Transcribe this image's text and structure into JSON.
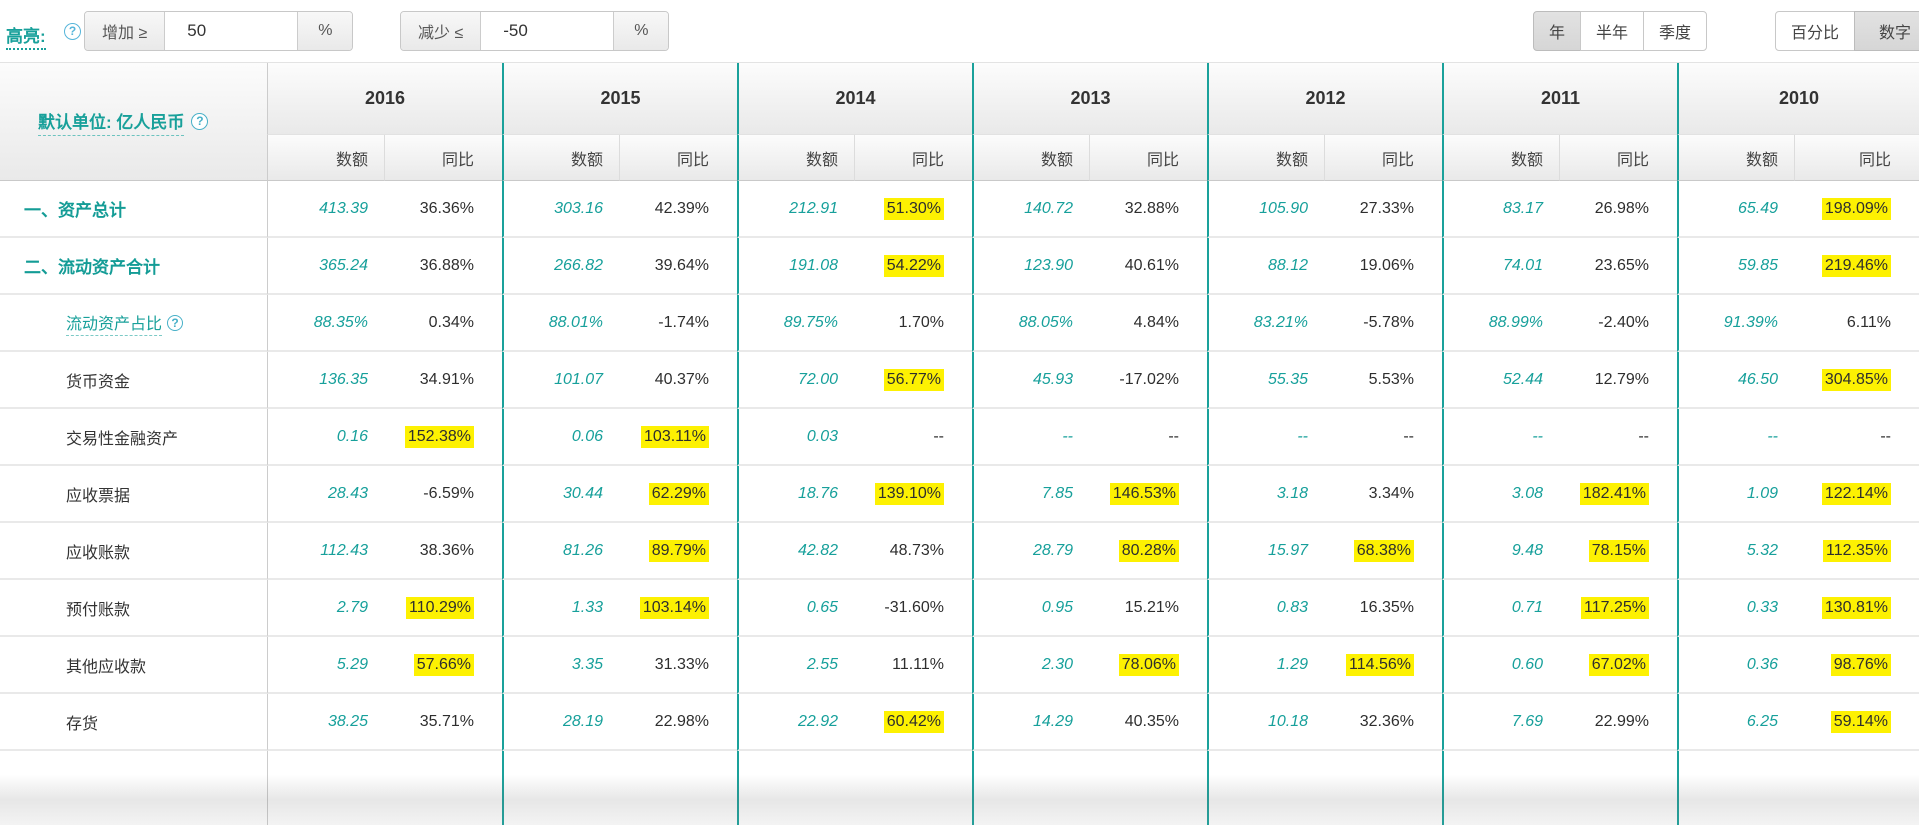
{
  "toolbar": {
    "highlight_label": "高亮:",
    "help_icon": "?",
    "increase_label": "增加 ≥",
    "increase_value": "50",
    "increase_unit": "%",
    "decrease_label": "减少 ≤",
    "decrease_value": "-50",
    "decrease_unit": "%",
    "period_buttons": [
      {
        "label": "年",
        "active": true
      },
      {
        "label": "半年",
        "active": false
      },
      {
        "label": "季度",
        "active": false
      }
    ],
    "format_buttons": [
      {
        "label": "百分比",
        "active": false
      },
      {
        "label": "数字",
        "active": true
      }
    ]
  },
  "table": {
    "unit_label": "默认单位: 亿人民币",
    "years": [
      "2016",
      "2015",
      "2014",
      "2013",
      "2012",
      "2011",
      "2010"
    ],
    "subheaders": [
      "数额",
      "同比"
    ],
    "rows": [
      {
        "label": "一、资产总计",
        "style": "section",
        "help": false,
        "cells": [
          {
            "amount": "413.39",
            "yoy": "36.36%",
            "hl": false
          },
          {
            "amount": "303.16",
            "yoy": "42.39%",
            "hl": false
          },
          {
            "amount": "212.91",
            "yoy": "51.30%",
            "hl": true
          },
          {
            "amount": "140.72",
            "yoy": "32.88%",
            "hl": false
          },
          {
            "amount": "105.90",
            "yoy": "27.33%",
            "hl": false
          },
          {
            "amount": "83.17",
            "yoy": "26.98%",
            "hl": false
          },
          {
            "amount": "65.49",
            "yoy": "198.09%",
            "hl": true
          }
        ]
      },
      {
        "label": "二、流动资产合计",
        "style": "section",
        "help": false,
        "cells": [
          {
            "amount": "365.24",
            "yoy": "36.88%",
            "hl": false
          },
          {
            "amount": "266.82",
            "yoy": "39.64%",
            "hl": false
          },
          {
            "amount": "191.08",
            "yoy": "54.22%",
            "hl": true
          },
          {
            "amount": "123.90",
            "yoy": "40.61%",
            "hl": false
          },
          {
            "amount": "88.12",
            "yoy": "19.06%",
            "hl": false
          },
          {
            "amount": "74.01",
            "yoy": "23.65%",
            "hl": false
          },
          {
            "amount": "59.85",
            "yoy": "219.46%",
            "hl": true
          }
        ]
      },
      {
        "label": "流动资产占比",
        "style": "link",
        "help": true,
        "cells": [
          {
            "amount": "88.35%",
            "yoy": "0.34%",
            "hl": false
          },
          {
            "amount": "88.01%",
            "yoy": "-1.74%",
            "hl": false
          },
          {
            "amount": "89.75%",
            "yoy": "1.70%",
            "hl": false
          },
          {
            "amount": "88.05%",
            "yoy": "4.84%",
            "hl": false
          },
          {
            "amount": "83.21%",
            "yoy": "-5.78%",
            "hl": false
          },
          {
            "amount": "88.99%",
            "yoy": "-2.40%",
            "hl": false
          },
          {
            "amount": "91.39%",
            "yoy": "6.11%",
            "hl": false
          }
        ]
      },
      {
        "label": "货币资金",
        "style": "item",
        "help": false,
        "cells": [
          {
            "amount": "136.35",
            "yoy": "34.91%",
            "hl": false
          },
          {
            "amount": "101.07",
            "yoy": "40.37%",
            "hl": false
          },
          {
            "amount": "72.00",
            "yoy": "56.77%",
            "hl": true
          },
          {
            "amount": "45.93",
            "yoy": "-17.02%",
            "hl": false
          },
          {
            "amount": "55.35",
            "yoy": "5.53%",
            "hl": false
          },
          {
            "amount": "52.44",
            "yoy": "12.79%",
            "hl": false
          },
          {
            "amount": "46.50",
            "yoy": "304.85%",
            "hl": true
          }
        ]
      },
      {
        "label": "交易性金融资产",
        "style": "item",
        "help": false,
        "cells": [
          {
            "amount": "0.16",
            "yoy": "152.38%",
            "hl": true
          },
          {
            "amount": "0.06",
            "yoy": "103.11%",
            "hl": true
          },
          {
            "amount": "0.03",
            "yoy": "--",
            "hl": false
          },
          {
            "amount": "--",
            "yoy": "--",
            "hl": false
          },
          {
            "amount": "--",
            "yoy": "--",
            "hl": false
          },
          {
            "amount": "--",
            "yoy": "--",
            "hl": false
          },
          {
            "amount": "--",
            "yoy": "--",
            "hl": false
          }
        ]
      },
      {
        "label": "应收票据",
        "style": "item",
        "help": false,
        "cells": [
          {
            "amount": "28.43",
            "yoy": "-6.59%",
            "hl": false
          },
          {
            "amount": "30.44",
            "yoy": "62.29%",
            "hl": true
          },
          {
            "amount": "18.76",
            "yoy": "139.10%",
            "hl": true
          },
          {
            "amount": "7.85",
            "yoy": "146.53%",
            "hl": true
          },
          {
            "amount": "3.18",
            "yoy": "3.34%",
            "hl": false
          },
          {
            "amount": "3.08",
            "yoy": "182.41%",
            "hl": true
          },
          {
            "amount": "1.09",
            "yoy": "122.14%",
            "hl": true
          }
        ]
      },
      {
        "label": "应收账款",
        "style": "item",
        "help": false,
        "cells": [
          {
            "amount": "112.43",
            "yoy": "38.36%",
            "hl": false
          },
          {
            "amount": "81.26",
            "yoy": "89.79%",
            "hl": true
          },
          {
            "amount": "42.82",
            "yoy": "48.73%",
            "hl": false
          },
          {
            "amount": "28.79",
            "yoy": "80.28%",
            "hl": true
          },
          {
            "amount": "15.97",
            "yoy": "68.38%",
            "hl": true
          },
          {
            "amount": "9.48",
            "yoy": "78.15%",
            "hl": true
          },
          {
            "amount": "5.32",
            "yoy": "112.35%",
            "hl": true
          }
        ]
      },
      {
        "label": "预付账款",
        "style": "item",
        "help": false,
        "cells": [
          {
            "amount": "2.79",
            "yoy": "110.29%",
            "hl": true
          },
          {
            "amount": "1.33",
            "yoy": "103.14%",
            "hl": true
          },
          {
            "amount": "0.65",
            "yoy": "-31.60%",
            "hl": false
          },
          {
            "amount": "0.95",
            "yoy": "15.21%",
            "hl": false
          },
          {
            "amount": "0.83",
            "yoy": "16.35%",
            "hl": false
          },
          {
            "amount": "0.71",
            "yoy": "117.25%",
            "hl": true
          },
          {
            "amount": "0.33",
            "yoy": "130.81%",
            "hl": true
          }
        ]
      },
      {
        "label": "其他应收款",
        "style": "item",
        "help": false,
        "cells": [
          {
            "amount": "5.29",
            "yoy": "57.66%",
            "hl": true
          },
          {
            "amount": "3.35",
            "yoy": "31.33%",
            "hl": false
          },
          {
            "amount": "2.55",
            "yoy": "11.11%",
            "hl": false
          },
          {
            "amount": "2.30",
            "yoy": "78.06%",
            "hl": true
          },
          {
            "amount": "1.29",
            "yoy": "114.56%",
            "hl": true
          },
          {
            "amount": "0.60",
            "yoy": "67.02%",
            "hl": true
          },
          {
            "amount": "0.36",
            "yoy": "98.76%",
            "hl": true
          }
        ]
      },
      {
        "label": "存货",
        "style": "item",
        "help": false,
        "cells": [
          {
            "amount": "38.25",
            "yoy": "35.71%",
            "hl": false
          },
          {
            "amount": "28.19",
            "yoy": "22.98%",
            "hl": false
          },
          {
            "amount": "22.92",
            "yoy": "60.42%",
            "hl": true
          },
          {
            "amount": "14.29",
            "yoy": "40.35%",
            "hl": false
          },
          {
            "amount": "10.18",
            "yoy": "32.36%",
            "hl": false
          },
          {
            "amount": "7.69",
            "yoy": "22.99%",
            "hl": false
          },
          {
            "amount": "6.25",
            "yoy": "59.14%",
            "hl": true
          }
        ]
      }
    ]
  },
  "colors": {
    "accent_teal": "#18a09a",
    "highlight_yellow": "#fdf102",
    "header_gray": "#e9e9e9"
  }
}
